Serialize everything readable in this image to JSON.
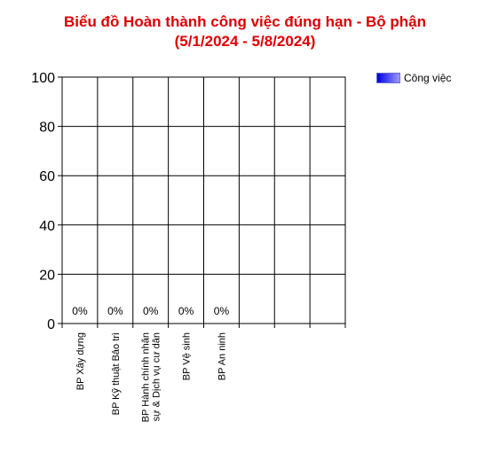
{
  "chart_data": {
    "type": "bar",
    "title": [
      "Biểu đồ Hoàn thành công việc đúng hạn - Bộ phận",
      "(5/1/2024 - 5/8/2024)"
    ],
    "categories": [
      [
        "BP Xây dựng"
      ],
      [
        "BP Kỹ thuật Bảo trì"
      ],
      [
        "BP Hành chính nhân",
        "sự & Dịch vụ cư dân"
      ],
      [
        "BP Vệ sinh"
      ],
      [
        "BP An ninh"
      ]
    ],
    "series": [
      {
        "name": "Công việc",
        "values": [
          0,
          0,
          0,
          0,
          0
        ]
      }
    ],
    "data_labels": [
      "0%",
      "0%",
      "0%",
      "0%",
      "0%"
    ],
    "ylim": [
      0,
      100
    ],
    "yticks": [
      0,
      20,
      40,
      60,
      80,
      100
    ],
    "grid": true,
    "legend_position": "top-right",
    "colors": {
      "title": "#e00000",
      "grid": "#000000",
      "series": "#3a3aff"
    }
  }
}
